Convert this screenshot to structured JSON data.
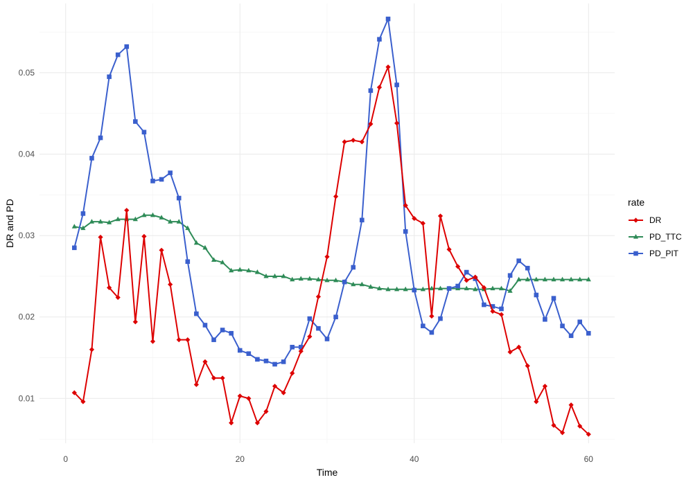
{
  "chart_data": {
    "type": "line",
    "xlabel": "Time",
    "ylabel": "DR and PD",
    "xlim": [
      -3,
      63
    ],
    "ylim": [
      0.0045,
      0.0585
    ],
    "x_ticks": [
      0,
      20,
      40,
      60
    ],
    "x_tick_labels": [
      "0",
      "20",
      "40",
      "60"
    ],
    "y_ticks": [
      0.01,
      0.02,
      0.03,
      0.04,
      0.05
    ],
    "y_tick_labels": [
      "0.01",
      "0.02",
      "0.03",
      "0.04",
      "0.05"
    ],
    "grid": true,
    "legend_position": "right",
    "legend_title": "rate",
    "x": [
      1,
      2,
      3,
      4,
      5,
      6,
      7,
      8,
      9,
      10,
      11,
      12,
      13,
      14,
      15,
      16,
      17,
      18,
      19,
      20,
      21,
      22,
      23,
      24,
      25,
      26,
      27,
      28,
      29,
      30,
      31,
      32,
      33,
      34,
      35,
      36,
      37,
      38,
      39,
      40,
      41,
      42,
      43,
      44,
      45,
      46,
      47,
      48,
      49,
      50,
      51,
      52,
      53,
      54,
      55,
      56,
      57,
      58,
      59,
      60
    ],
    "series": [
      {
        "name": "DR",
        "color": "#dd0000",
        "marker": "diamond",
        "values": [
          0.0107,
          0.0096,
          0.016,
          0.0298,
          0.0236,
          0.0224,
          0.0331,
          0.0194,
          0.0299,
          0.017,
          0.0282,
          0.024,
          0.0172,
          0.0172,
          0.0117,
          0.0145,
          0.0125,
          0.0125,
          0.007,
          0.0103,
          0.01,
          0.007,
          0.0084,
          0.0115,
          0.0107,
          0.0131,
          0.0158,
          0.0176,
          0.0225,
          0.0274,
          0.0348,
          0.0415,
          0.0417,
          0.0415,
          0.0437,
          0.0482,
          0.0507,
          0.0438,
          0.0337,
          0.0321,
          0.0315,
          0.0201,
          0.0324,
          0.0283,
          0.0262,
          0.0245,
          0.0249,
          0.0236,
          0.0207,
          0.0203,
          0.0157,
          0.0163,
          0.014,
          0.0096,
          0.0115,
          0.0067,
          0.0058,
          0.0092,
          0.0066,
          0.0056
        ]
      },
      {
        "name": "PD_TTC",
        "color": "#2e8b57",
        "marker": "triangle",
        "values": [
          0.0311,
          0.0309,
          0.0317,
          0.0317,
          0.0316,
          0.032,
          0.032,
          0.032,
          0.0325,
          0.0325,
          0.0322,
          0.0317,
          0.0317,
          0.0309,
          0.0291,
          0.0285,
          0.027,
          0.0267,
          0.0257,
          0.0258,
          0.0257,
          0.0255,
          0.025,
          0.025,
          0.025,
          0.0246,
          0.0247,
          0.0247,
          0.0246,
          0.0245,
          0.0245,
          0.0243,
          0.024,
          0.024,
          0.0237,
          0.0235,
          0.0234,
          0.0234,
          0.0234,
          0.0234,
          0.0234,
          0.0235,
          0.0235,
          0.0235,
          0.0235,
          0.0235,
          0.0234,
          0.0234,
          0.0235,
          0.0235,
          0.0232,
          0.0246,
          0.0246,
          0.0246,
          0.0246,
          0.0246,
          0.0246,
          0.0246,
          0.0246,
          0.0246
        ]
      },
      {
        "name": "PD_PIT",
        "color": "#3a5fcd",
        "marker": "square",
        "values": [
          0.0285,
          0.0327,
          0.0395,
          0.042,
          0.0495,
          0.0522,
          0.0532,
          0.044,
          0.0427,
          0.0367,
          0.0369,
          0.0377,
          0.0346,
          0.0268,
          0.0204,
          0.019,
          0.0172,
          0.0184,
          0.018,
          0.0159,
          0.0155,
          0.0148,
          0.0146,
          0.0142,
          0.0145,
          0.0163,
          0.0163,
          0.0198,
          0.0186,
          0.0173,
          0.02,
          0.0243,
          0.0261,
          0.0319,
          0.0478,
          0.0541,
          0.0566,
          0.0485,
          0.0305,
          0.0233,
          0.0189,
          0.0181,
          0.0198,
          0.0235,
          0.0238,
          0.0255,
          0.0247,
          0.0215,
          0.0213,
          0.021,
          0.0251,
          0.0269,
          0.026,
          0.0227,
          0.0197,
          0.0223,
          0.0189,
          0.0177,
          0.0194,
          0.018
        ]
      }
    ]
  }
}
